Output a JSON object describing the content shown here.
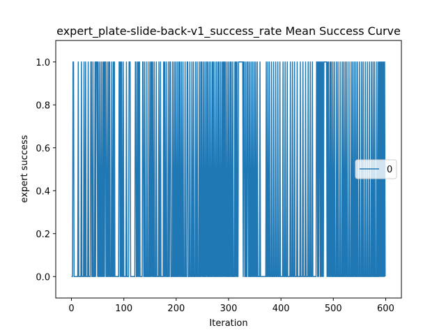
{
  "chart_data": {
    "type": "line",
    "title": "expert_plate-slide-back-v1_success_rate Mean Success Curve",
    "xlabel": "Iteration",
    "ylabel": "expert success",
    "xlim": [
      -30,
      630
    ],
    "ylim": [
      -0.1,
      1.1
    ],
    "xticks": [
      0,
      100,
      200,
      300,
      400,
      500,
      600
    ],
    "yticks": [
      0.0,
      0.2,
      0.4,
      0.6,
      0.8,
      1.0
    ],
    "ytick_labels": [
      "0.0",
      "0.2",
      "0.4",
      "0.6",
      "0.8",
      "1.0"
    ],
    "legend_position": "center-right",
    "grid": false,
    "series": [
      {
        "name": "0",
        "color": "#1f77b4",
        "success_iterations": [
          3,
          4,
          13,
          19,
          24,
          27,
          32,
          37,
          38,
          41,
          45,
          47,
          48,
          49,
          51,
          54,
          57,
          60,
          62,
          64,
          65,
          68,
          71,
          73,
          77,
          80,
          82,
          91,
          92,
          94,
          96,
          99,
          105,
          110,
          111,
          112,
          122,
          123,
          126,
          128,
          130,
          136,
          137,
          140,
          144,
          148,
          151,
          153,
          155,
          158,
          162,
          167,
          170,
          176,
          178,
          181,
          185,
          188,
          189,
          193,
          196,
          199,
          202,
          205,
          207,
          210,
          213,
          217,
          221,
          222,
          226,
          230,
          233,
          237,
          240,
          244,
          247,
          249,
          252,
          255,
          258,
          260,
          263,
          266,
          269,
          271,
          274,
          277,
          280,
          282,
          285,
          288,
          290,
          292,
          294,
          297,
          300,
          303,
          305,
          308,
          312,
          314,
          316,
          319,
          320,
          321,
          322,
          323,
          324,
          325,
          326,
          327,
          329,
          330,
          333,
          336,
          337,
          340,
          343,
          346,
          349,
          352,
          355,
          360,
          372,
          375,
          378,
          382,
          386,
          390,
          394,
          398,
          404,
          408,
          412,
          418,
          422,
          426,
          431,
          437,
          442,
          447,
          452,
          456,
          460,
          468,
          469,
          471,
          473,
          474,
          476,
          478,
          480,
          482,
          483,
          484,
          485,
          486,
          487,
          489,
          491,
          494,
          496,
          499,
          502,
          506,
          509,
          513,
          517,
          520,
          523,
          526,
          530,
          534,
          537,
          540,
          543,
          546,
          550,
          554,
          557,
          561,
          565,
          569,
          573,
          576,
          579,
          583,
          586,
          588,
          590,
          592,
          594,
          596,
          598
        ],
        "x_range": [
          0,
          599
        ],
        "default_value": 0.0,
        "success_value": 1.0
      }
    ]
  }
}
